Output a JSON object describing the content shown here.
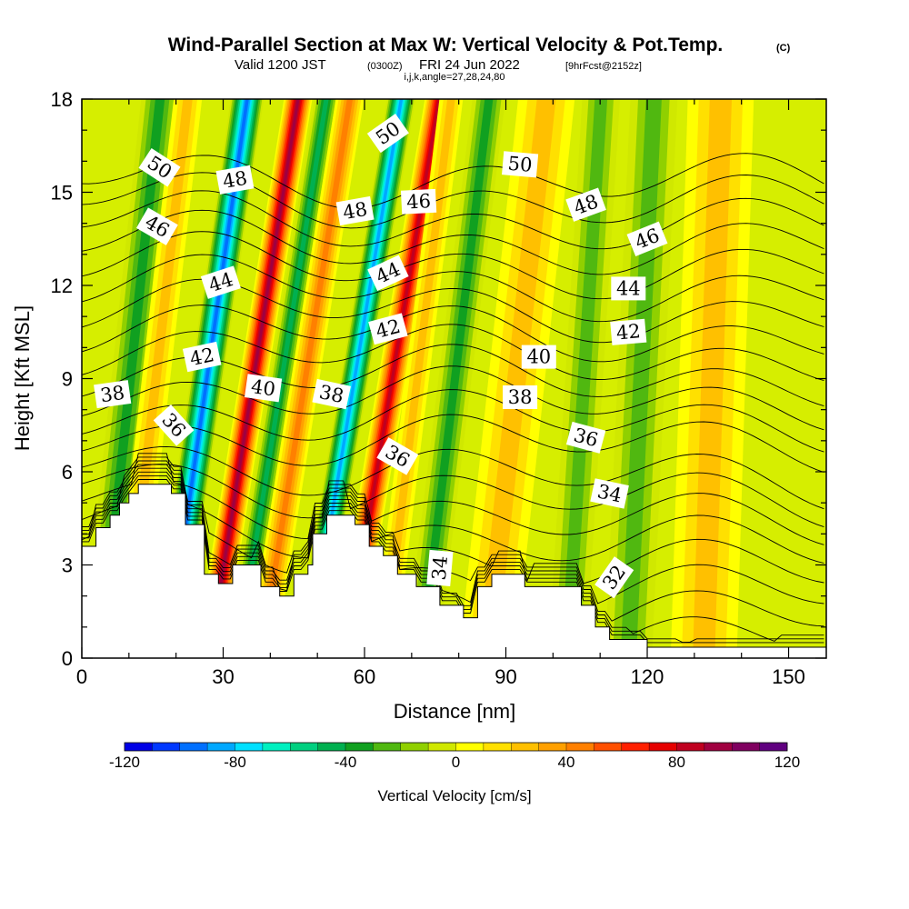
{
  "chart_data": {
    "type": "heatmap",
    "title": "Wind-Parallel Section at Max W: Vertical Velocity & Pot.Temp.",
    "title_suffix": "(C)",
    "subtitle_parts": {
      "valid": "Valid 1200 JST",
      "utc": "(0300Z)",
      "date": "FRI 24 Jun 2022",
      "fcst": "[9hrFcst@2152z]"
    },
    "grid_info": "i,j,k,angle=27,28,24,80",
    "xlabel": "Distance [nm]",
    "ylabel": "Height [Kft MSL]",
    "xlim": [
      0,
      158
    ],
    "ylim": [
      0,
      18
    ],
    "x_ticks": [
      0,
      30,
      60,
      90,
      120,
      150
    ],
    "y_ticks": [
      0,
      3,
      6,
      9,
      12,
      15,
      18
    ],
    "colorbar": {
      "label": "Vertical Velocity [cm/s]",
      "range": [
        -120,
        120
      ],
      "step": 10,
      "tick_labels": [
        -120,
        -80,
        -40,
        0,
        40,
        80,
        120
      ],
      "colors": [
        "#0000e6",
        "#0038ff",
        "#0070ff",
        "#00a8ff",
        "#00e0ff",
        "#00f0c0",
        "#00d080",
        "#00b050",
        "#10a020",
        "#50b810",
        "#90d000",
        "#d0e800",
        "#ffff00",
        "#ffe000",
        "#ffc000",
        "#ffa000",
        "#ff8000",
        "#ff5000",
        "#ff2000",
        "#e60000",
        "#c00020",
        "#a00040",
        "#800060",
        "#600080"
      ]
    },
    "velocity_bands": [
      {
        "x": 4,
        "w": 8,
        "v": -35,
        "slope": 0.7
      },
      {
        "x": 9,
        "w": 6,
        "v": 25,
        "slope": 0.75
      },
      {
        "x": 18,
        "w": 7,
        "v": -95,
        "slope": 0.95
      },
      {
        "x": 27,
        "w": 6,
        "v": 95,
        "slope": 1.05
      },
      {
        "x": 33,
        "w": 5,
        "v": -45,
        "slope": 1.05
      },
      {
        "x": 38,
        "w": 6,
        "v": 45,
        "slope": 1.05
      },
      {
        "x": 48,
        "w": 6,
        "v": -85,
        "slope": 1.1
      },
      {
        "x": 56,
        "w": 6,
        "v": 85,
        "slope": 1.1
      },
      {
        "x": 64,
        "w": 5,
        "v": 30,
        "slope": 0.8
      },
      {
        "x": 72,
        "w": 7,
        "v": -40,
        "slope": 0.8
      },
      {
        "x": 86,
        "w": 12,
        "v": 30,
        "slope": 0.7
      },
      {
        "x": 103,
        "w": 8,
        "v": -30,
        "slope": 0.4
      },
      {
        "x": 116,
        "w": 10,
        "v": -25,
        "slope": 0.3
      },
      {
        "x": 132,
        "w": 14,
        "v": 25,
        "slope": 0.2
      }
    ],
    "terrain": [
      [
        0,
        3.6
      ],
      [
        3,
        3.6
      ],
      [
        3,
        4.2
      ],
      [
        6,
        4.2
      ],
      [
        6,
        4.6
      ],
      [
        8,
        4.6
      ],
      [
        8,
        5.0
      ],
      [
        10,
        5.0
      ],
      [
        10,
        5.3
      ],
      [
        12,
        5.3
      ],
      [
        12,
        5.6
      ],
      [
        19,
        5.6
      ],
      [
        19,
        5.3
      ],
      [
        22,
        5.3
      ],
      [
        22,
        4.3
      ],
      [
        26,
        4.3
      ],
      [
        26,
        2.7
      ],
      [
        29,
        2.7
      ],
      [
        29,
        2.4
      ],
      [
        32,
        2.4
      ],
      [
        32,
        3.0
      ],
      [
        38,
        3.0
      ],
      [
        38,
        2.3
      ],
      [
        42,
        2.3
      ],
      [
        42,
        2.0
      ],
      [
        45,
        2.0
      ],
      [
        45,
        2.7
      ],
      [
        48,
        2.7
      ],
      [
        48,
        3.0
      ],
      [
        49,
        3.0
      ],
      [
        49,
        4.0
      ],
      [
        52,
        4.0
      ],
      [
        52,
        4.6
      ],
      [
        58,
        4.6
      ],
      [
        58,
        4.3
      ],
      [
        61,
        4.3
      ],
      [
        61,
        3.6
      ],
      [
        64,
        3.6
      ],
      [
        64,
        3.3
      ],
      [
        67,
        3.3
      ],
      [
        67,
        2.7
      ],
      [
        71,
        2.7
      ],
      [
        71,
        2.3
      ],
      [
        76,
        2.3
      ],
      [
        76,
        1.7
      ],
      [
        81,
        1.7
      ],
      [
        81,
        1.3
      ],
      [
        84,
        1.3
      ],
      [
        84,
        2.3
      ],
      [
        87,
        2.3
      ],
      [
        87,
        2.7
      ],
      [
        94,
        2.7
      ],
      [
        94,
        2.3
      ],
      [
        106,
        2.3
      ],
      [
        106,
        1.7
      ],
      [
        109,
        1.7
      ],
      [
        109,
        1.0
      ],
      [
        112,
        1.0
      ],
      [
        112,
        0.6
      ],
      [
        120,
        0.6
      ],
      [
        120,
        0.35
      ],
      [
        158,
        0.35
      ],
      [
        158,
        0.6
      ]
    ],
    "theta_contours": {
      "levels": [
        30,
        31,
        32,
        33,
        34,
        35,
        36,
        37,
        38,
        39,
        40,
        41,
        42,
        43,
        44,
        45,
        46,
        47,
        48,
        49,
        50,
        51,
        52
      ],
      "labels": [
        {
          "text": "50",
          "x": 16.5,
          "y": 15.8,
          "angle": 33
        },
        {
          "text": "46",
          "x": 16,
          "y": 13.9,
          "angle": 30
        },
        {
          "text": "38",
          "x": 6.5,
          "y": 8.5,
          "angle": -8
        },
        {
          "text": "36",
          "x": 19.5,
          "y": 7.5,
          "angle": 48
        },
        {
          "text": "48",
          "x": 32.5,
          "y": 15.4,
          "angle": -10
        },
        {
          "text": "44",
          "x": 29.5,
          "y": 12.1,
          "angle": -18
        },
        {
          "text": "42",
          "x": 25.5,
          "y": 9.7,
          "angle": -12
        },
        {
          "text": "40",
          "x": 38.5,
          "y": 8.7,
          "angle": 8
        },
        {
          "text": "38",
          "x": 53,
          "y": 8.5,
          "angle": 12
        },
        {
          "text": "48",
          "x": 58,
          "y": 14.4,
          "angle": -10
        },
        {
          "text": "50",
          "x": 65,
          "y": 16.9,
          "angle": -35
        },
        {
          "text": "46",
          "x": 71.5,
          "y": 14.7,
          "angle": -3
        },
        {
          "text": "44",
          "x": 65,
          "y": 12.4,
          "angle": -25
        },
        {
          "text": "42",
          "x": 65,
          "y": 10.6,
          "angle": -15
        },
        {
          "text": "36",
          "x": 67,
          "y": 6.5,
          "angle": 30
        },
        {
          "text": "34",
          "x": 76,
          "y": 2.9,
          "angle": -85
        },
        {
          "text": "50",
          "x": 93,
          "y": 15.9,
          "angle": 5
        },
        {
          "text": "40",
          "x": 97,
          "y": 9.7,
          "angle": 0
        },
        {
          "text": "38",
          "x": 93,
          "y": 8.4,
          "angle": 0
        },
        {
          "text": "48",
          "x": 107,
          "y": 14.6,
          "angle": -20
        },
        {
          "text": "46",
          "x": 120,
          "y": 13.5,
          "angle": -22
        },
        {
          "text": "44",
          "x": 116,
          "y": 11.9,
          "angle": 0
        },
        {
          "text": "42",
          "x": 116,
          "y": 10.5,
          "angle": -5
        },
        {
          "text": "36",
          "x": 107,
          "y": 7.1,
          "angle": 15
        },
        {
          "text": "34",
          "x": 112,
          "y": 5.3,
          "angle": 12
        },
        {
          "text": "32",
          "x": 113,
          "y": 2.6,
          "angle": -55
        }
      ]
    }
  }
}
